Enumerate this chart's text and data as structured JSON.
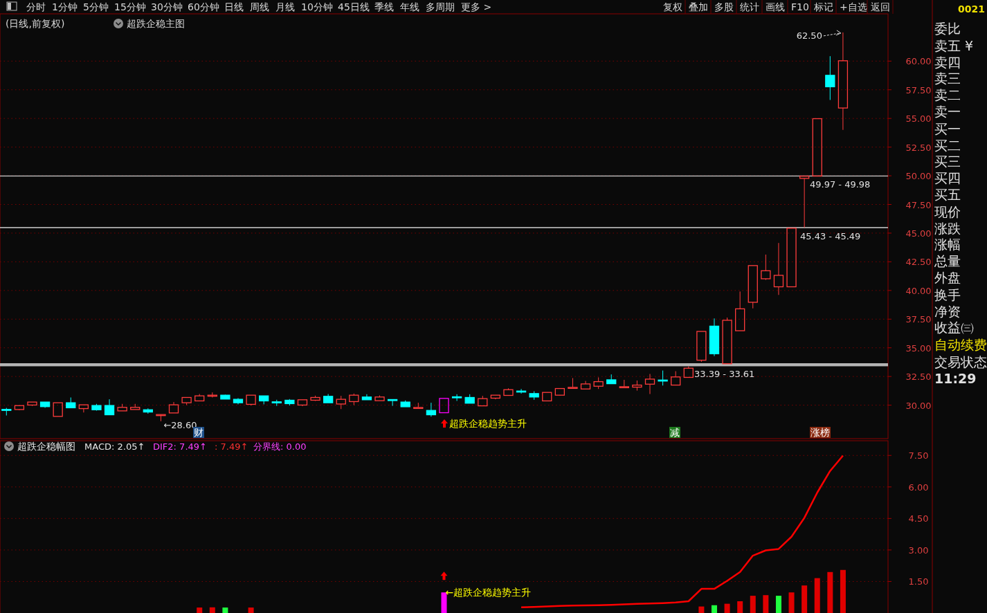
{
  "chart_data": [
    {
      "type": "candlestick",
      "title": "(日线,前复权)",
      "subtitle": "超跌企稳主图",
      "categories": [
        null,
        null,
        null,
        null,
        null,
        null,
        null,
        null,
        null,
        null,
        null,
        null,
        null,
        null,
        null,
        null,
        null,
        null,
        null,
        null,
        null,
        null,
        null,
        null,
        null,
        null,
        null,
        null,
        null,
        null,
        null,
        null,
        null,
        null,
        null,
        null,
        null,
        null,
        null,
        null,
        null,
        null,
        null,
        null,
        null,
        null,
        null,
        null,
        null,
        null,
        null,
        null,
        null,
        null,
        null,
        null,
        null,
        null,
        null,
        null,
        null,
        null,
        null,
        null,
        null,
        null,
        null,
        null,
        null
      ],
      "ohlc": [
        [
          29.63,
          29.76,
          29.1,
          29.61
        ],
        [
          29.62,
          29.97,
          29.56,
          29.96
        ],
        [
          30.01,
          30.27,
          29.93,
          30.27
        ],
        [
          30.27,
          30.27,
          29.77,
          29.87
        ],
        [
          29.02,
          30.21,
          29.02,
          30.21
        ],
        [
          30.21,
          30.67,
          29.77,
          29.77
        ],
        [
          29.7,
          30.03,
          29.36,
          30.03
        ],
        [
          29.97,
          30.11,
          29.52,
          29.6
        ],
        [
          29.97,
          30.51,
          29.16,
          29.16
        ],
        [
          29.5,
          30.11,
          29.5,
          29.81
        ],
        [
          29.62,
          30.11,
          29.62,
          29.81
        ],
        [
          29.6,
          29.72,
          29.26,
          29.4
        ],
        [
          29.16,
          29.18,
          28.6,
          29.18
        ],
        [
          29.32,
          30.27,
          29.32,
          30.03
        ],
        [
          30.21,
          30.67,
          30.01,
          30.67
        ],
        [
          30.37,
          30.97,
          30.37,
          30.81
        ],
        [
          30.85,
          31.11,
          30.67,
          30.87
        ],
        [
          30.87,
          30.91,
          30.53,
          30.53
        ],
        [
          30.51,
          30.61,
          30.07,
          30.21
        ],
        [
          30.07,
          30.87,
          29.97,
          30.87
        ],
        [
          30.81,
          30.81,
          30.07,
          30.37
        ],
        [
          30.29,
          30.47,
          29.93,
          30.27
        ],
        [
          30.43,
          30.53,
          29.97,
          30.13
        ],
        [
          30.01,
          30.47,
          29.91,
          30.47
        ],
        [
          30.43,
          30.83,
          30.37,
          30.67
        ],
        [
          30.77,
          30.97,
          30.21,
          30.21
        ],
        [
          30.1,
          30.81,
          29.66,
          30.51
        ],
        [
          30.31,
          31.01,
          30.0,
          30.87
        ],
        [
          30.71,
          30.95,
          30.47,
          30.47
        ],
        [
          30.39,
          30.85,
          30.39,
          30.71
        ],
        [
          30.49,
          30.51,
          29.94,
          30.47
        ],
        [
          30.27,
          30.41,
          29.86,
          29.86
        ],
        [
          29.78,
          30.21,
          29.78,
          29.8
        ],
        [
          29.54,
          30.21,
          29.0,
          29.16
        ],
        [
          29.34,
          30.59,
          29.34,
          30.59
        ],
        [
          30.73,
          30.95,
          30.37,
          30.71
        ],
        [
          30.67,
          30.95,
          30.17,
          30.17
        ],
        [
          29.94,
          30.81,
          29.94,
          30.57
        ],
        [
          30.61,
          30.87,
          30.51,
          30.87
        ],
        [
          30.85,
          31.47,
          30.85,
          31.35
        ],
        [
          31.23,
          31.41,
          31.01,
          31.21
        ],
        [
          31.01,
          31.21,
          30.47,
          30.71
        ],
        [
          30.37,
          31.11,
          30.37,
          31.11
        ],
        [
          30.87,
          31.45,
          30.83,
          31.45
        ],
        [
          31.53,
          32.36,
          31.53,
          31.55
        ],
        [
          31.41,
          32.11,
          31.41,
          31.85
        ],
        [
          31.65,
          32.42,
          31.41,
          32.05
        ],
        [
          32.21,
          32.68,
          31.87,
          31.87
        ],
        [
          31.59,
          32.21,
          31.59,
          31.61
        ],
        [
          31.57,
          32.15,
          31.27,
          31.75
        ],
        [
          31.83,
          32.72,
          30.97,
          32.27
        ],
        [
          32.19,
          33.02,
          31.71,
          32.17
        ],
        [
          31.75,
          32.96,
          31.75,
          32.46
        ],
        [
          32.42,
          33.39,
          32.42,
          33.22
        ],
        [
          33.92,
          36.43,
          33.78,
          36.43
        ],
        [
          36.89,
          37.56,
          34.28,
          34.48
        ],
        [
          33.61,
          37.64,
          33.61,
          37.4
        ],
        [
          36.49,
          39.91,
          36.49,
          38.4
        ],
        [
          38.97,
          42.17,
          38.44,
          42.17
        ],
        [
          41.02,
          43.13,
          40.92,
          41.72
        ],
        [
          40.32,
          44.14,
          39.61,
          41.32
        ],
        [
          40.32,
          45.43,
          40.32,
          45.43
        ],
        [
          49.77,
          49.97,
          45.49,
          49.97
        ],
        [
          49.98,
          54.98,
          49.98,
          54.98
        ],
        [
          58.76,
          60.43,
          56.61,
          57.76
        ],
        [
          55.91,
          62.5,
          54.0,
          60.03
        ],
        null,
        null,
        null
      ],
      "colors": [
        "#00ffff",
        "#ff3c3c",
        "#ff3c3c",
        "#00ffff",
        "#ff3c3c",
        "#00ffff",
        "#ff3c3c",
        "#00ffff",
        "#00ffff",
        "#ff3c3c",
        "#ff3c3c",
        "#00ffff",
        "#ff3c3c",
        "#ff3c3c",
        "#ff3c3c",
        "#ff3c3c",
        "#ff3c3c",
        "#00ffff",
        "#00ffff",
        "#ff3c3c",
        "#00ffff",
        "#00ffff",
        "#00ffff",
        "#ff3c3c",
        "#ff3c3c",
        "#00ffff",
        "#ff3c3c",
        "#ff3c3c",
        "#00ffff",
        "#ff3c3c",
        "#00ffff",
        "#00ffff",
        "#ff3c3c",
        "#00ffff",
        "#ff00ff",
        "#00ffff",
        "#00ffff",
        "#ff3c3c",
        "#ff3c3c",
        "#ff3c3c",
        "#00ffff",
        "#00ffff",
        "#ff3c3c",
        "#ff3c3c",
        "#ff3c3c",
        "#ff3c3c",
        "#ff3c3c",
        "#00ffff",
        "#ff3c3c",
        "#ff3c3c",
        "#ff3c3c",
        "#00ffff",
        "#ff3c3c",
        "#ff3c3c",
        "#ff3c3c",
        "#00ffff",
        "#ff3c3c",
        "#ff3c3c",
        "#ff3c3c",
        "#ff3c3c",
        "#ff3c3c",
        "#ff3c3c",
        "#ff3c3c",
        "#ff3c3c",
        "#00ffff",
        "#ff3c3c",
        null,
        null,
        null
      ],
      "ylim": [
        27.2,
        64.0
      ],
      "yticks": [
        {
          "value": 30,
          "label": "30.00"
        },
        {
          "value": 32.5,
          "label": "32.50"
        },
        {
          "value": 35,
          "label": "35.00"
        },
        {
          "value": 37.5,
          "label": "37.50"
        },
        {
          "value": 40,
          "label": "40.00"
        },
        {
          "value": 42.5,
          "label": "42.50"
        },
        {
          "value": 45,
          "label": "45.00"
        },
        {
          "value": 47.5,
          "label": "47.50"
        },
        {
          "value": 50,
          "label": "50.00"
        },
        {
          "value": 52.5,
          "label": "52.50"
        },
        {
          "value": 55,
          "label": "55.00"
        },
        {
          "value": 57.5,
          "label": "57.50"
        },
        {
          "value": 60,
          "label": "60.00"
        }
      ],
      "grid": "y",
      "bands": [
        {
          "axis": "y",
          "from": 33.39,
          "to": 33.61,
          "label": "33.39 - 33.61",
          "color": "#b4b4b4"
        },
        {
          "axis": "y",
          "from": 45.43,
          "to": 45.49,
          "label": "45.43 - 45.49",
          "color": "#b4b4b4"
        },
        {
          "axis": "y",
          "from": 49.97,
          "to": 49.98,
          "label": "49.97 - 49.98",
          "color": "#b4b4b4"
        }
      ],
      "annotations": [
        "62.50",
        "←28.60",
        "超跌企稳趋势主升",
        "财",
        "减",
        "涨榜"
      ]
    },
    {
      "type": "bar",
      "title": "超跌企稳幅图",
      "categories": [
        null,
        null,
        null,
        null,
        null,
        null,
        null,
        null,
        null,
        null,
        null,
        null,
        null,
        null,
        null,
        null,
        null,
        null,
        null,
        null,
        null,
        null,
        null,
        null,
        null,
        null,
        null,
        null,
        null,
        null,
        null,
        null,
        null,
        null,
        null,
        null,
        null,
        null,
        null,
        null,
        null,
        null,
        null,
        null,
        null,
        null,
        null,
        null,
        null,
        null,
        null,
        null,
        null,
        null,
        null,
        null,
        null,
        null,
        null,
        null,
        null,
        null,
        null,
        null,
        null,
        null,
        null,
        null,
        null
      ],
      "series": [
        {
          "type": "bar",
          "color": "#e00000",
          "values": [
            null,
            null,
            null,
            null,
            null,
            null,
            null,
            null,
            null,
            null,
            null,
            null,
            null,
            null,
            null,
            0.26,
            0.27,
            0.26,
            null,
            0.26,
            null,
            null,
            null,
            null,
            null,
            null,
            null,
            null,
            null,
            null,
            null,
            null,
            null,
            null,
            0.98,
            null,
            null,
            null,
            null,
            null,
            null,
            null,
            null,
            null,
            null,
            null,
            null,
            null,
            null,
            null,
            null,
            null,
            null,
            null,
            0.31,
            0.37,
            0.44,
            0.56,
            0.82,
            0.85,
            0.82,
            0.98,
            1.31,
            1.66,
            1.95,
            2.05,
            null,
            null,
            null
          ],
          "colors": [
            null,
            null,
            null,
            null,
            null,
            null,
            null,
            null,
            null,
            null,
            null,
            null,
            null,
            null,
            null,
            null,
            null,
            "#20ff40",
            null,
            null,
            null,
            null,
            null,
            null,
            null,
            null,
            null,
            null,
            null,
            null,
            null,
            null,
            null,
            null,
            "#ff00ff",
            null,
            null,
            null,
            null,
            null,
            null,
            null,
            null,
            null,
            null,
            null,
            null,
            null,
            null,
            null,
            null,
            null,
            null,
            null,
            null,
            "#20ff40",
            null,
            null,
            null,
            null,
            "#20ff40",
            null,
            null,
            null,
            null,
            null,
            null,
            null,
            null
          ]
        },
        {
          "type": "line",
          "color": "#ff0000",
          "values": [
            null,
            null,
            null,
            null,
            null,
            null,
            null,
            null,
            null,
            null,
            null,
            null,
            null,
            null,
            null,
            null,
            null,
            null,
            null,
            null,
            null,
            null,
            null,
            null,
            null,
            null,
            null,
            null,
            null,
            null,
            null,
            null,
            null,
            null,
            null,
            null,
            null,
            null,
            null,
            null,
            0.27,
            0.29,
            0.31,
            0.34,
            0.35,
            0.36,
            0.37,
            0.39,
            0.41,
            0.44,
            0.45,
            0.47,
            0.5,
            0.56,
            1.15,
            1.15,
            1.53,
            1.95,
            2.73,
            2.98,
            3.05,
            3.63,
            4.53,
            5.73,
            6.76,
            7.49,
            null,
            null,
            null
          ]
        }
      ],
      "ylim": [
        0,
        8.2
      ],
      "yticks": [
        {
          "value": 1.5,
          "label": "1.50"
        },
        {
          "value": 3,
          "label": "3.00"
        },
        {
          "value": 4.5,
          "label": "4.50"
        },
        {
          "value": 6,
          "label": "6.00"
        },
        {
          "value": 7.5,
          "label": "7.50"
        }
      ],
      "grid": "y",
      "annotations": [
        "MACD: 2.05↑",
        "DIF2: 7.49↑",
        ": 7.49↑",
        "分界线: 0.00",
        "←超跌企稳趋势主升"
      ]
    },
    {
      "type": "other",
      "annotations": [
        "分时",
        "1分钟",
        "5分钟",
        "15分钟",
        "30分钟",
        "60分钟",
        "日线",
        "周线",
        "月线",
        "10分钟",
        "45日线",
        "季线",
        "年线",
        "多周期",
        "更多 >"
      ]
    },
    {
      "type": "other",
      "annotations": [
        "复权",
        "叠加",
        "多股",
        "统计",
        "画线",
        "F10",
        "标记",
        "+自选",
        "返回"
      ]
    },
    {
      "type": "other",
      "annotations": [
        "0021",
        "委比",
        "卖五 ¥",
        "卖四",
        "卖三",
        "卖二",
        "卖一",
        "买一",
        "买二",
        "买三",
        "买四",
        "买五",
        "现价",
        "涨跌",
        "涨幅",
        "总量",
        "外盘",
        "换手",
        "净资",
        "收益㈢",
        "自动续费",
        "交易状态",
        "11:29"
      ]
    }
  ]
}
